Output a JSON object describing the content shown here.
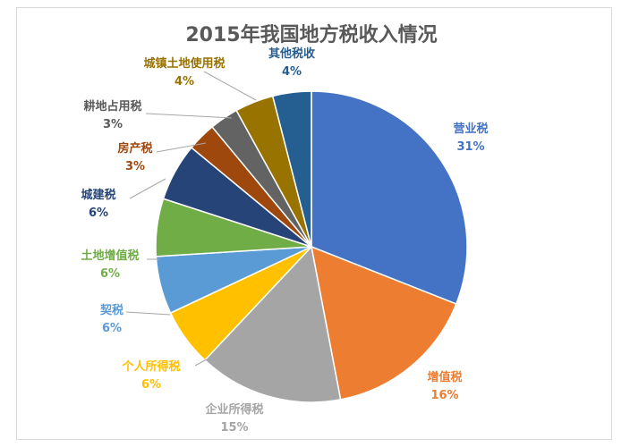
{
  "chart_data": {
    "type": "pie",
    "title": "2015年我国地方税收入情况",
    "slices": [
      {
        "label": "营业税",
        "value": 31,
        "pct_label": "31%",
        "color": "#4472c4",
        "label_color": "#4472c4"
      },
      {
        "label": "增值税",
        "value": 16,
        "pct_label": "16%",
        "color": "#ed7d31",
        "label_color": "#ed7d31"
      },
      {
        "label": "企业所得税",
        "value": 15,
        "pct_label": "15%",
        "color": "#a5a5a5",
        "label_color": "#a5a5a5"
      },
      {
        "label": "个人所得税",
        "value": 6,
        "pct_label": "6%",
        "color": "#ffc000",
        "label_color": "#ffc000"
      },
      {
        "label": "契税",
        "value": 6,
        "pct_label": "6%",
        "color": "#5b9bd5",
        "label_color": "#5b9bd5"
      },
      {
        "label": "土地增值税",
        "value": 6,
        "pct_label": "6%",
        "color": "#70ad47",
        "label_color": "#70ad47"
      },
      {
        "label": "城建税",
        "value": 6,
        "pct_label": "6%",
        "color": "#264478",
        "label_color": "#264478"
      },
      {
        "label": "房产税",
        "value": 3,
        "pct_label": "3%",
        "color": "#9e480e",
        "label_color": "#9e480e"
      },
      {
        "label": "耕地占用税",
        "value": 3,
        "pct_label": "3%",
        "color": "#636363",
        "label_color": "#595959"
      },
      {
        "label": "城镇土地使用税",
        "value": 4,
        "pct_label": "4%",
        "color": "#997300",
        "label_color": "#997300"
      },
      {
        "label": "其他税收",
        "value": 4,
        "pct_label": "4%",
        "color": "#255e91",
        "label_color": "#255e91"
      }
    ]
  }
}
